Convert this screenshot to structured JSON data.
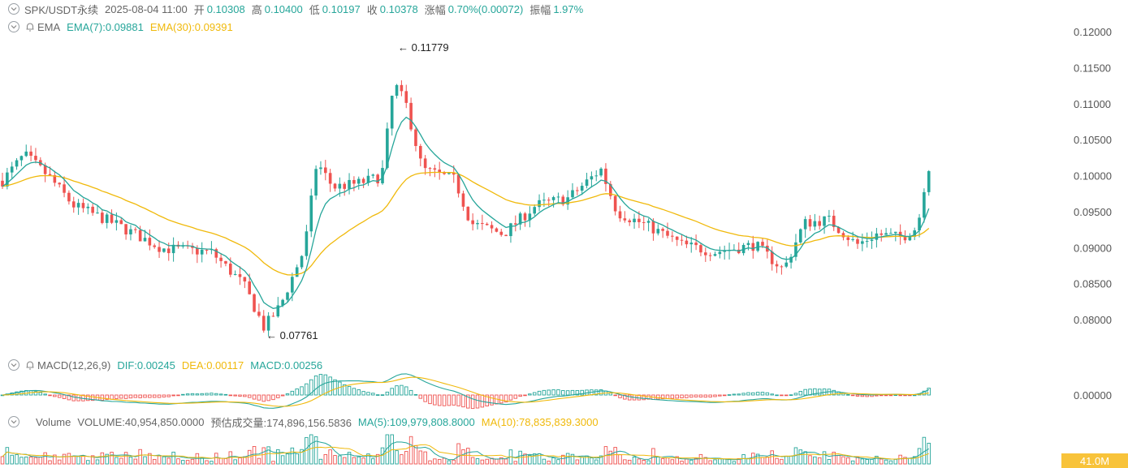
{
  "header": {
    "symbol": "SPK/USDT永续",
    "datetime": "2025-08-04 11:00",
    "open_label": "开",
    "open": "0.10308",
    "high_label": "高",
    "high": "0.10400",
    "low_label": "低",
    "low": "0.10197",
    "close_label": "收",
    "close": "0.10378",
    "change_label": "涨幅",
    "change": "0.70%(0.00072)",
    "amp_label": "振幅",
    "amp": "1.97%"
  },
  "ema": {
    "name": "EMA",
    "ema7": "EMA(7):0.09881",
    "ema30": "EMA(30):0.09391"
  },
  "macd": {
    "name": "MACD(12,26,9)",
    "dif": "DIF:0.00245",
    "dea": "DEA:0.00117",
    "macd": "MACD:0.00256"
  },
  "volume": {
    "name": "Volume",
    "volume": "VOLUME:40,954,850.0000",
    "est": "预估成交量:174,896,156.5836",
    "ma5": "MA(5):109,979,808.8000",
    "ma10": "MA(10):78,835,839.3000",
    "tag": "41.0M"
  },
  "annotations": {
    "high": "← 0.11779",
    "low": "← 0.07761"
  },
  "colors": {
    "up": "#26a69a",
    "down": "#ef5350",
    "ema7": "#26a69a",
    "ema30": "#f0b90b"
  },
  "chart_data": {
    "type": "line",
    "y_ticks": [
      "0.12000",
      "0.11500",
      "0.11000",
      "0.10500",
      "0.10000",
      "0.09500",
      "0.09000",
      "0.08500",
      "0.08000"
    ],
    "macd_tick": "0.00000",
    "ylim": [
      0.0775,
      0.1215
    ],
    "anchors": [
      [
        0,
        0.099
      ],
      [
        30,
        0.103
      ],
      [
        60,
        0.1
      ],
      [
        90,
        0.096
      ],
      [
        140,
        0.0935
      ],
      [
        200,
        0.09
      ],
      [
        260,
        0.0895
      ],
      [
        300,
        0.085
      ],
      [
        325,
        0.079
      ],
      [
        345,
        0.082
      ],
      [
        375,
        0.09
      ],
      [
        390,
        0.102
      ],
      [
        410,
        0.0985
      ],
      [
        440,
        0.099
      ],
      [
        470,
        0.1
      ],
      [
        485,
        0.113
      ],
      [
        500,
        0.11
      ],
      [
        520,
        0.101
      ],
      [
        560,
        0.0995
      ],
      [
        580,
        0.0935
      ],
      [
        620,
        0.092
      ],
      [
        660,
        0.096
      ],
      [
        700,
        0.097
      ],
      [
        740,
        0.101
      ],
      [
        760,
        0.095
      ],
      [
        800,
        0.093
      ],
      [
        840,
        0.0905
      ],
      [
        880,
        0.0895
      ],
      [
        930,
        0.0905
      ],
      [
        965,
        0.087
      ],
      [
        990,
        0.0935
      ],
      [
        1020,
        0.094
      ],
      [
        1055,
        0.0905
      ],
      [
        1080,
        0.092
      ],
      [
        1110,
        0.0915
      ],
      [
        1130,
        0.093
      ],
      [
        1140,
        0.1
      ],
      [
        1150,
        0.1035
      ]
    ],
    "ema7_last": 0.09881,
    "ema30_last": 0.09391,
    "high_point": 0.11779,
    "low_point": 0.07761
  }
}
